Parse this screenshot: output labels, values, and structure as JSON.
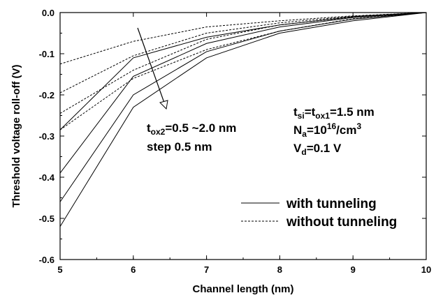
{
  "chart_data": {
    "type": "line",
    "xlabel": "Channel length (nm)",
    "ylabel": "Threshold voltage roll-off (V)",
    "xlim": [
      5,
      10
    ],
    "ylim": [
      -0.6,
      0.0
    ],
    "xticks": [
      "5",
      "6",
      "7",
      "8",
      "9",
      "10"
    ],
    "yticks": [
      "0.0",
      "-0.1",
      "-0.2",
      "-0.3",
      "-0.4",
      "-0.5",
      "-0.6"
    ],
    "grid": false,
    "legend_position": "bottom-right",
    "x": [
      5,
      6,
      7,
      8,
      9,
      10
    ],
    "series": [
      {
        "group": "with",
        "values": [
          -0.39,
          -0.155,
          -0.075,
          -0.035,
          -0.012,
          0.0
        ]
      },
      {
        "group": "with",
        "values": [
          -0.46,
          -0.2,
          -0.095,
          -0.045,
          -0.016,
          0.0
        ]
      },
      {
        "group": "with",
        "values": [
          -0.52,
          -0.23,
          -0.11,
          -0.05,
          -0.02,
          0.0
        ]
      },
      {
        "group": "with",
        "values": [
          -0.285,
          -0.11,
          -0.06,
          -0.03,
          -0.01,
          0.0
        ]
      },
      {
        "group": "without",
        "values": [
          -0.125,
          -0.07,
          -0.035,
          -0.02,
          -0.008,
          0.0
        ]
      },
      {
        "group": "without",
        "values": [
          -0.195,
          -0.105,
          -0.05,
          -0.025,
          -0.009,
          0.0
        ]
      },
      {
        "group": "without",
        "values": [
          -0.245,
          -0.14,
          -0.065,
          -0.03,
          -0.011,
          0.0
        ]
      },
      {
        "group": "without",
        "values": [
          -0.285,
          -0.16,
          -0.09,
          -0.045,
          -0.015,
          0.0
        ]
      }
    ],
    "legend": [
      {
        "label": "with tunneling",
        "style": "solid"
      },
      {
        "label": "without tunneling",
        "style": "dashed"
      }
    ],
    "annotations": {
      "arrow_text_line1": "t",
      "arrow_text_line1_sub": "ox2",
      "arrow_text_line1_rest": "=0.5 ~2.0 nm",
      "arrow_text_line2": "step 0.5 nm",
      "params_t": "t",
      "params_t_sub1": "si",
      "params_t_eq": "=t",
      "params_t_sub2": "ox1",
      "params_t_rest": "=1.5 nm",
      "params_n": "N",
      "params_n_sub": "a",
      "params_n_eq": "=10",
      "params_n_sup": "16",
      "params_n_rest": "/cm",
      "params_n_sup2": "3",
      "params_v": "V",
      "params_v_sub": "d",
      "params_v_rest": "=0.1 V"
    },
    "colors": {
      "line": "#000000",
      "background": "#ffffff"
    }
  }
}
